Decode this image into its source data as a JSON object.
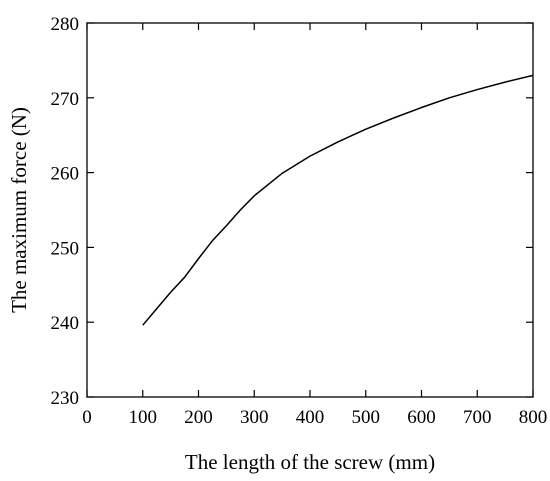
{
  "chart_data": {
    "type": "line",
    "xlabel": "The length of the screw (mm)",
    "ylabel": "The maximum force (N)",
    "xlim": [
      0,
      800
    ],
    "ylim": [
      230,
      280
    ],
    "xticks": [
      0,
      100,
      200,
      300,
      400,
      500,
      600,
      700,
      800
    ],
    "yticks": [
      230,
      240,
      250,
      260,
      270,
      280
    ],
    "grid": false,
    "series": [
      {
        "color": "#000000",
        "x": [
          100,
          125,
          150,
          175,
          200,
          225,
          250,
          275,
          300,
          350,
          400,
          450,
          500,
          550,
          600,
          650,
          700,
          750,
          800
        ],
        "y": [
          239.6,
          241.8,
          244.0,
          246.0,
          248.5,
          250.9,
          252.9,
          255.0,
          256.9,
          259.9,
          262.2,
          264.1,
          265.8,
          267.3,
          268.7,
          270.0,
          271.1,
          272.1,
          273.0
        ]
      }
    ]
  }
}
